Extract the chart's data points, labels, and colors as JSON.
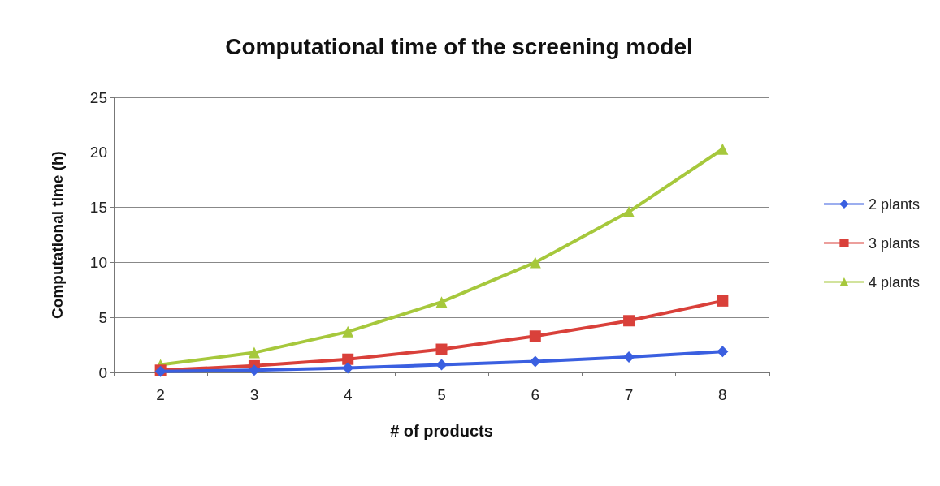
{
  "chart_data": {
    "type": "line",
    "title": "Computational time of the screening model",
    "xlabel": "# of products",
    "ylabel": "Computational time (h)",
    "categories": [
      "2",
      "3",
      "4",
      "5",
      "6",
      "7",
      "8"
    ],
    "series": [
      {
        "name": "2 plants",
        "color": "#3a5fe0",
        "marker": "diamond",
        "values": [
          0.1,
          0.2,
          0.4,
          0.7,
          1.0,
          1.4,
          1.9
        ]
      },
      {
        "name": "3 plants",
        "color": "#d9403a",
        "marker": "square",
        "values": [
          0.2,
          0.6,
          1.2,
          2.1,
          3.3,
          4.7,
          6.5
        ]
      },
      {
        "name": "4 plants",
        "color": "#a6c83c",
        "marker": "triangle",
        "values": [
          0.7,
          1.8,
          3.7,
          6.4,
          10.0,
          14.6,
          20.3
        ]
      }
    ],
    "ylim": [
      0,
      25
    ],
    "yticks": [
      0,
      5,
      10,
      15,
      20,
      25
    ],
    "grid": "y",
    "legend": "right"
  }
}
